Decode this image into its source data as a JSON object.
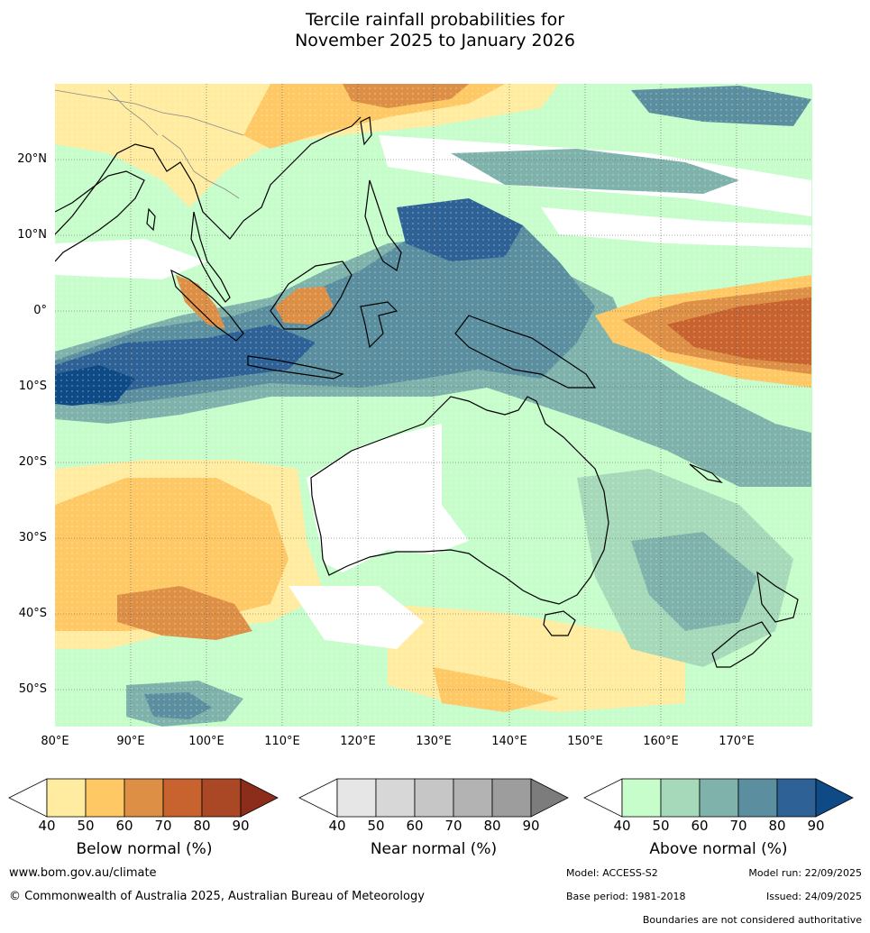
{
  "title": {
    "line1": "Tercile rainfall probabilities for",
    "line2": "November 2025 to January 2026"
  },
  "axes": {
    "lat_labels": [
      "20°N",
      "10°N",
      "0°",
      "10°S",
      "20°S",
      "30°S",
      "40°S",
      "50°S"
    ],
    "lon_labels": [
      "80°E",
      "90°E",
      "100°E",
      "110°E",
      "120°E",
      "130°E",
      "140°E",
      "150°E",
      "160°E",
      "170°E"
    ]
  },
  "colorbars": [
    {
      "title": "Below normal (%)",
      "ticks": [
        "40",
        "50",
        "60",
        "70",
        "80",
        "90"
      ],
      "colors": [
        "#ffeca0",
        "#fec965",
        "#dc8f45",
        "#c8622e",
        "#aa4826"
      ],
      "over_color": "#8c2c1a"
    },
    {
      "title": "Near normal (%)",
      "ticks": [
        "40",
        "50",
        "60",
        "70",
        "80",
        "90"
      ],
      "colors": [
        "#e6e6e6",
        "#d7d7d7",
        "#c6c6c6",
        "#b3b3b3",
        "#9d9d9d"
      ],
      "over_color": "#7c7c7c"
    },
    {
      "title": "Above normal (%)",
      "ticks": [
        "40",
        "50",
        "60",
        "70",
        "80",
        "90"
      ],
      "colors": [
        "#c7fccb",
        "#a5d9b9",
        "#7eb2ab",
        "#5b8fa0",
        "#2e6297"
      ],
      "over_color": "#0e4a86"
    }
  ],
  "footer": {
    "website": "www.bom.gov.au/climate",
    "copyright": "© Commonwealth of Australia 2025, Australian Bureau of Meteorology",
    "model": "Model: ACCESS-S2",
    "model_run": "Model run: 22/09/2025",
    "base_period": "Base period: 1981-2018",
    "issued": "Issued: 24/09/2025",
    "disclaimer": "Boundaries are not considered authoritative"
  }
}
